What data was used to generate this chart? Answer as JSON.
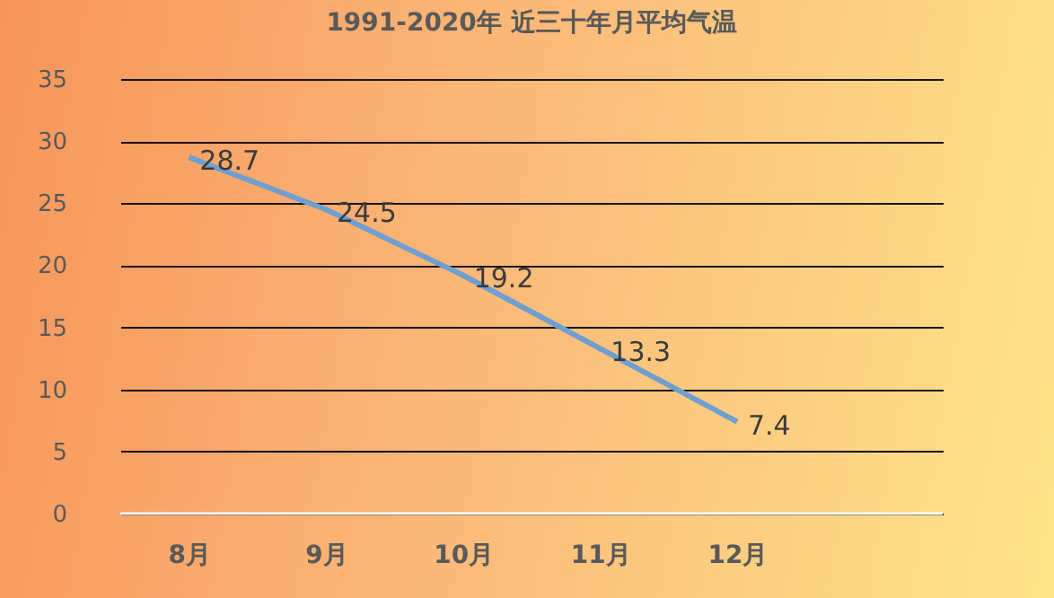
{
  "chart_data": {
    "type": "line",
    "title": "1991-2020年 近三十年月平均气温",
    "categories": [
      "8月",
      "9月",
      "10月",
      "11月",
      "12月"
    ],
    "series": [
      {
        "color": "#6f9fd0",
        "values": [
          28.7,
          24.5,
          19.2,
          13.3,
          7.4
        ]
      }
    ],
    "ylim": [
      0,
      35
    ],
    "yticks": [
      0,
      5,
      10,
      15,
      20,
      25,
      30,
      35
    ],
    "grid": "y",
    "data_labels": true,
    "marker": "none",
    "line_style": "solid",
    "legend": false
  }
}
